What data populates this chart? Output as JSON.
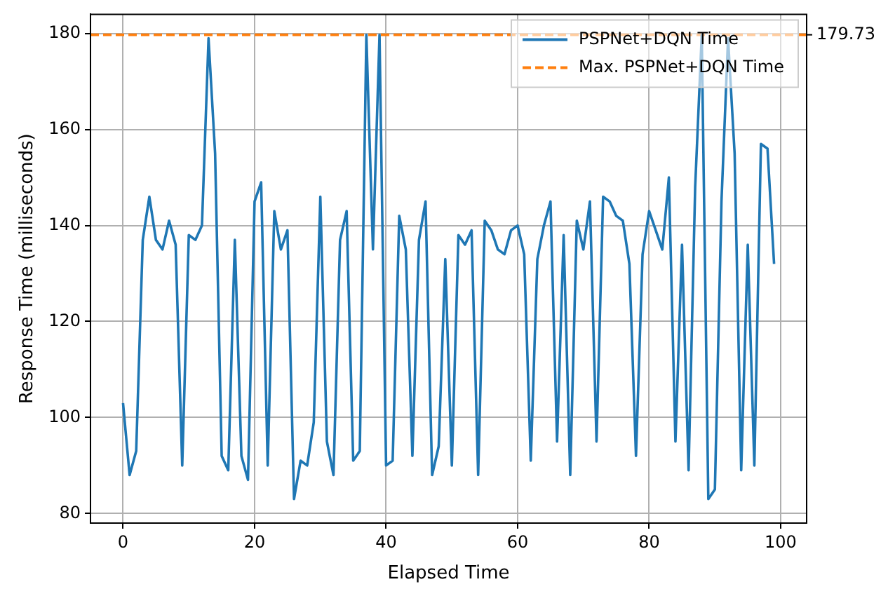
{
  "chart_data": {
    "type": "line",
    "xlabel": "Elapsed Time",
    "ylabel": "Response Time (milliseconds)",
    "x": [
      0,
      1,
      2,
      3,
      4,
      5,
      6,
      7,
      8,
      9,
      10,
      11,
      12,
      13,
      14,
      15,
      16,
      17,
      18,
      19,
      20,
      21,
      22,
      23,
      24,
      25,
      26,
      27,
      28,
      29,
      30,
      31,
      32,
      33,
      34,
      35,
      36,
      37,
      38,
      39,
      40,
      41,
      42,
      43,
      44,
      45,
      46,
      47,
      48,
      49,
      50,
      51,
      52,
      53,
      54,
      55,
      56,
      57,
      58,
      59,
      60,
      61,
      62,
      63,
      64,
      65,
      66,
      67,
      68,
      69,
      70,
      71,
      72,
      73,
      74,
      75,
      76,
      77,
      78,
      79,
      80,
      81,
      82,
      83,
      84,
      85,
      86,
      87,
      88,
      89,
      90,
      91,
      92,
      93,
      94,
      95,
      96,
      97,
      98,
      99
    ],
    "series": [
      {
        "name": "PSPNet+DQN Time",
        "color": "#1f77b4",
        "values": [
          103,
          88,
          93,
          137,
          146,
          137,
          135,
          141,
          136,
          90,
          138,
          137,
          140,
          179,
          155,
          92,
          89,
          137,
          92,
          87,
          145,
          149,
          90,
          143,
          135,
          139,
          83,
          91,
          90,
          99,
          146,
          95,
          88,
          137,
          143,
          91,
          93,
          179.7,
          135,
          179.7,
          90,
          91,
          142,
          135,
          92,
          137,
          145,
          88,
          94,
          133,
          90,
          138,
          136,
          139,
          88,
          141,
          139,
          135,
          134,
          139,
          140,
          134,
          91,
          133,
          140,
          145,
          95,
          138,
          88,
          141,
          135,
          145,
          95,
          146,
          145,
          142,
          141,
          132,
          92,
          134,
          143,
          139,
          135,
          150,
          95,
          136,
          89,
          148,
          179.7,
          83,
          85,
          145,
          179,
          155,
          89,
          136,
          90,
          157,
          156,
          132
        ]
      }
    ],
    "ref_lines": [
      {
        "axis": "y",
        "value": 179.73,
        "label": "Max. PSPNet+DQN Time",
        "color": "#ff7f0e",
        "line_style": "dashed"
      }
    ],
    "annotations": [
      "179.73"
    ],
    "xlim": [
      -4.95,
      103.95
    ],
    "ylim": [
      78,
      184
    ],
    "xticks": [
      0,
      20,
      40,
      60,
      80,
      100
    ],
    "yticks": [
      80,
      100,
      120,
      140,
      160,
      180
    ],
    "grid": true,
    "legend": "top right",
    "line_style": "solid",
    "marker": "none"
  }
}
